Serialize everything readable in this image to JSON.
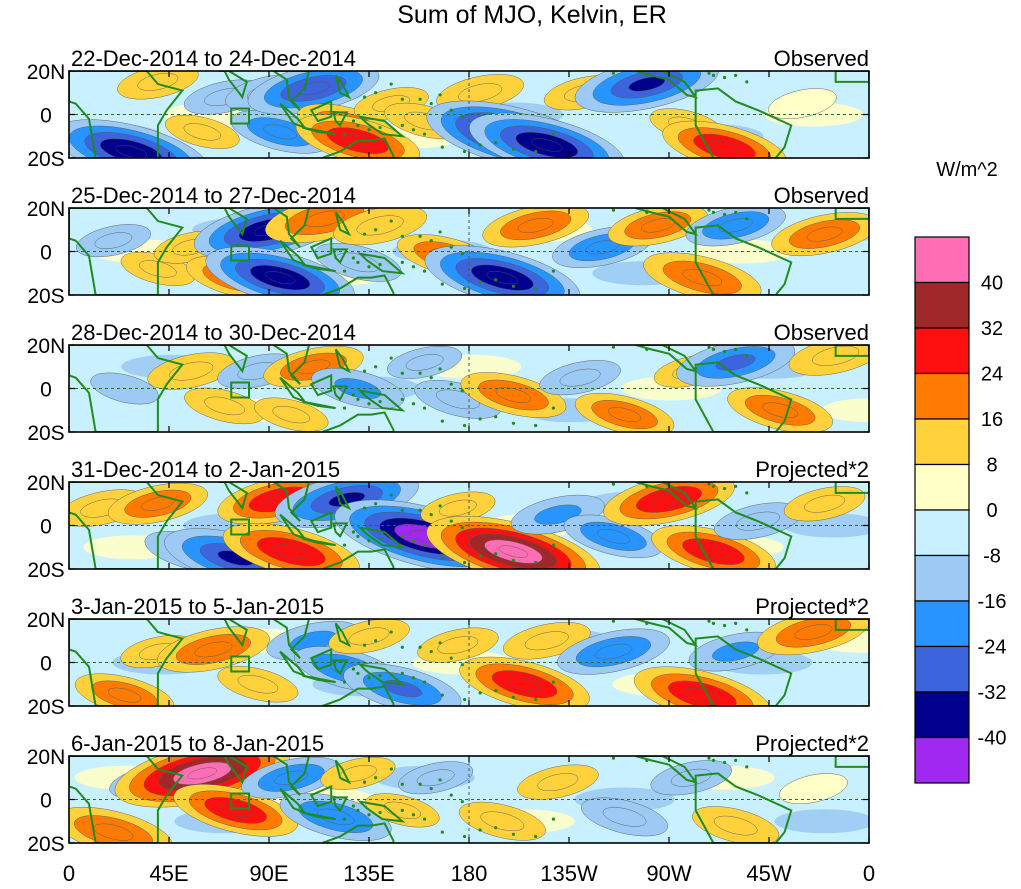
{
  "chart_data": {
    "type": "heatmap",
    "title": "Sum of MJO, Kelvin, ER",
    "units_label": "W/m^2",
    "x_ticks": [
      "0",
      "45E",
      "90E",
      "135E",
      "180",
      "135W",
      "90W",
      "45W",
      "0"
    ],
    "y_ticks": [
      "20N",
      "0",
      "20S"
    ],
    "lat_range": [
      -20,
      20
    ],
    "lon_range": [
      0,
      360
    ],
    "colorbar": {
      "levels": [
        "40",
        "32",
        "24",
        "16",
        "8",
        "0",
        "-8",
        "-16",
        "-24",
        "-32",
        "-40"
      ],
      "colors": [
        "#ff6eb4",
        "#a02828",
        "#ff1010",
        "#ff7a00",
        "#ffd23c",
        "#ffffc8",
        "#c8f0ff",
        "#9ccaf4",
        "#2894ff",
        "#3c64dc",
        "#00008c",
        "#a028f0"
      ]
    },
    "land_color": "#1e8c1e",
    "panels": [
      {
        "label": "22-Dec-2014 to 24-Dec-2014",
        "kind": "Observed",
        "features": [
          {
            "lon": 28,
            "lat": -17,
            "v": -36
          },
          {
            "lon": 40,
            "lat": 15,
            "v": 12
          },
          {
            "lon": 60,
            "lat": -8,
            "v": 10
          },
          {
            "lon": 70,
            "lat": 8,
            "v": -12
          },
          {
            "lon": 90,
            "lat": 10,
            "v": -14
          },
          {
            "lon": 95,
            "lat": -8,
            "v": -18
          },
          {
            "lon": 110,
            "lat": 12,
            "v": -28
          },
          {
            "lon": 125,
            "lat": -5,
            "v": 18
          },
          {
            "lon": 130,
            "lat": -12,
            "v": 26
          },
          {
            "lon": 145,
            "lat": 5,
            "v": 10
          },
          {
            "lon": 160,
            "lat": -3,
            "v": 12
          },
          {
            "lon": 185,
            "lat": 10,
            "v": 14
          },
          {
            "lon": 200,
            "lat": -10,
            "v": -42
          },
          {
            "lon": 215,
            "lat": -14,
            "v": -36
          },
          {
            "lon": 232,
            "lat": 10,
            "v": 12
          },
          {
            "lon": 260,
            "lat": 14,
            "v": -32
          },
          {
            "lon": 278,
            "lat": -5,
            "v": 10
          },
          {
            "lon": 295,
            "lat": -15,
            "v": 26
          },
          {
            "lon": 330,
            "lat": 5,
            "v": 8
          }
        ]
      },
      {
        "label": "25-Dec-2014 to 27-Dec-2014",
        "kind": "Observed",
        "features": [
          {
            "lon": 20,
            "lat": 5,
            "v": -10
          },
          {
            "lon": 40,
            "lat": -8,
            "v": 10
          },
          {
            "lon": 55,
            "lat": 2,
            "v": 10
          },
          {
            "lon": 75,
            "lat": -12,
            "v": 18
          },
          {
            "lon": 90,
            "lat": 10,
            "v": -34
          },
          {
            "lon": 95,
            "lat": -12,
            "v": -34
          },
          {
            "lon": 115,
            "lat": 15,
            "v": 24
          },
          {
            "lon": 130,
            "lat": -5,
            "v": -14
          },
          {
            "lon": 140,
            "lat": 12,
            "v": 16
          },
          {
            "lon": 170,
            "lat": -2,
            "v": 18
          },
          {
            "lon": 195,
            "lat": -12,
            "v": -36
          },
          {
            "lon": 210,
            "lat": 12,
            "v": 20
          },
          {
            "lon": 240,
            "lat": 2,
            "v": -18
          },
          {
            "lon": 265,
            "lat": 12,
            "v": 18
          },
          {
            "lon": 285,
            "lat": -12,
            "v": 24
          },
          {
            "lon": 300,
            "lat": 12,
            "v": -18
          },
          {
            "lon": 340,
            "lat": 8,
            "v": 20
          }
        ]
      },
      {
        "label": "28-Dec-2014 to 30-Dec-2014",
        "kind": "Observed",
        "features": [
          {
            "lon": 25,
            "lat": 0,
            "v": -8
          },
          {
            "lon": 55,
            "lat": 8,
            "v": 14
          },
          {
            "lon": 70,
            "lat": -8,
            "v": 12
          },
          {
            "lon": 85,
            "lat": 8,
            "v": -12
          },
          {
            "lon": 110,
            "lat": 10,
            "v": 18
          },
          {
            "lon": 100,
            "lat": -12,
            "v": 10
          },
          {
            "lon": 130,
            "lat": 0,
            "v": -16
          },
          {
            "lon": 160,
            "lat": 12,
            "v": -10
          },
          {
            "lon": 175,
            "lat": -5,
            "v": -14
          },
          {
            "lon": 200,
            "lat": -3,
            "v": 20
          },
          {
            "lon": 230,
            "lat": 5,
            "v": -12
          },
          {
            "lon": 250,
            "lat": -12,
            "v": 18
          },
          {
            "lon": 280,
            "lat": 8,
            "v": 10
          },
          {
            "lon": 300,
            "lat": 12,
            "v": -24
          },
          {
            "lon": 320,
            "lat": -10,
            "v": 20
          },
          {
            "lon": 345,
            "lat": 15,
            "v": 16
          }
        ]
      },
      {
        "label": "31-Dec-2014 to 2-Jan-2015",
        "kind": "Projected*2",
        "features": [
          {
            "lon": 15,
            "lat": 8,
            "v": 14
          },
          {
            "lon": 40,
            "lat": 10,
            "v": 18
          },
          {
            "lon": 55,
            "lat": -12,
            "v": -16
          },
          {
            "lon": 75,
            "lat": -15,
            "v": -32
          },
          {
            "lon": 95,
            "lat": 12,
            "v": 26
          },
          {
            "lon": 100,
            "lat": -12,
            "v": 30
          },
          {
            "lon": 125,
            "lat": 12,
            "v": -32
          },
          {
            "lon": 140,
            "lat": 0,
            "v": 12
          },
          {
            "lon": 160,
            "lat": -5,
            "v": -44
          },
          {
            "lon": 175,
            "lat": 8,
            "v": 10
          },
          {
            "lon": 200,
            "lat": -12,
            "v": 42
          },
          {
            "lon": 220,
            "lat": 5,
            "v": -16
          },
          {
            "lon": 245,
            "lat": -5,
            "v": -18
          },
          {
            "lon": 270,
            "lat": 12,
            "v": 28
          },
          {
            "lon": 290,
            "lat": -12,
            "v": 26
          },
          {
            "lon": 310,
            "lat": 2,
            "v": -14
          },
          {
            "lon": 340,
            "lat": 10,
            "v": 12
          }
        ]
      },
      {
        "label": "3-Jan-2015 to 5-Jan-2015",
        "kind": "Projected*2",
        "features": [
          {
            "lon": 25,
            "lat": -15,
            "v": 18
          },
          {
            "lon": 40,
            "lat": 5,
            "v": 10
          },
          {
            "lon": 65,
            "lat": 6,
            "v": 22
          },
          {
            "lon": 85,
            "lat": -10,
            "v": 12
          },
          {
            "lon": 110,
            "lat": 10,
            "v": -16
          },
          {
            "lon": 125,
            "lat": -3,
            "v": -20
          },
          {
            "lon": 135,
            "lat": 12,
            "v": 12
          },
          {
            "lon": 150,
            "lat": -12,
            "v": -24
          },
          {
            "lon": 175,
            "lat": 8,
            "v": 12
          },
          {
            "lon": 205,
            "lat": -10,
            "v": 28
          },
          {
            "lon": 215,
            "lat": 10,
            "v": 14
          },
          {
            "lon": 245,
            "lat": 5,
            "v": -22
          },
          {
            "lon": 285,
            "lat": -15,
            "v": 30
          },
          {
            "lon": 300,
            "lat": 5,
            "v": -16
          },
          {
            "lon": 335,
            "lat": 14,
            "v": 22
          }
        ]
      },
      {
        "label": "6-Jan-2015 to 8-Jan-2015",
        "kind": "Projected*2",
        "features": [
          {
            "lon": 20,
            "lat": -15,
            "v": 24
          },
          {
            "lon": 35,
            "lat": 8,
            "v": -10
          },
          {
            "lon": 60,
            "lat": 12,
            "v": 42
          },
          {
            "lon": 75,
            "lat": -5,
            "v": 26
          },
          {
            "lon": 100,
            "lat": 10,
            "v": -18
          },
          {
            "lon": 120,
            "lat": -8,
            "v": -22
          },
          {
            "lon": 130,
            "lat": 12,
            "v": 10
          },
          {
            "lon": 150,
            "lat": -5,
            "v": 10
          },
          {
            "lon": 165,
            "lat": 10,
            "v": -10
          },
          {
            "lon": 195,
            "lat": -10,
            "v": 14
          },
          {
            "lon": 220,
            "lat": 8,
            "v": 12
          },
          {
            "lon": 250,
            "lat": -8,
            "v": -14
          },
          {
            "lon": 280,
            "lat": 10,
            "v": -12
          },
          {
            "lon": 300,
            "lat": -12,
            "v": 14
          },
          {
            "lon": 335,
            "lat": 5,
            "v": 8
          }
        ]
      }
    ]
  }
}
